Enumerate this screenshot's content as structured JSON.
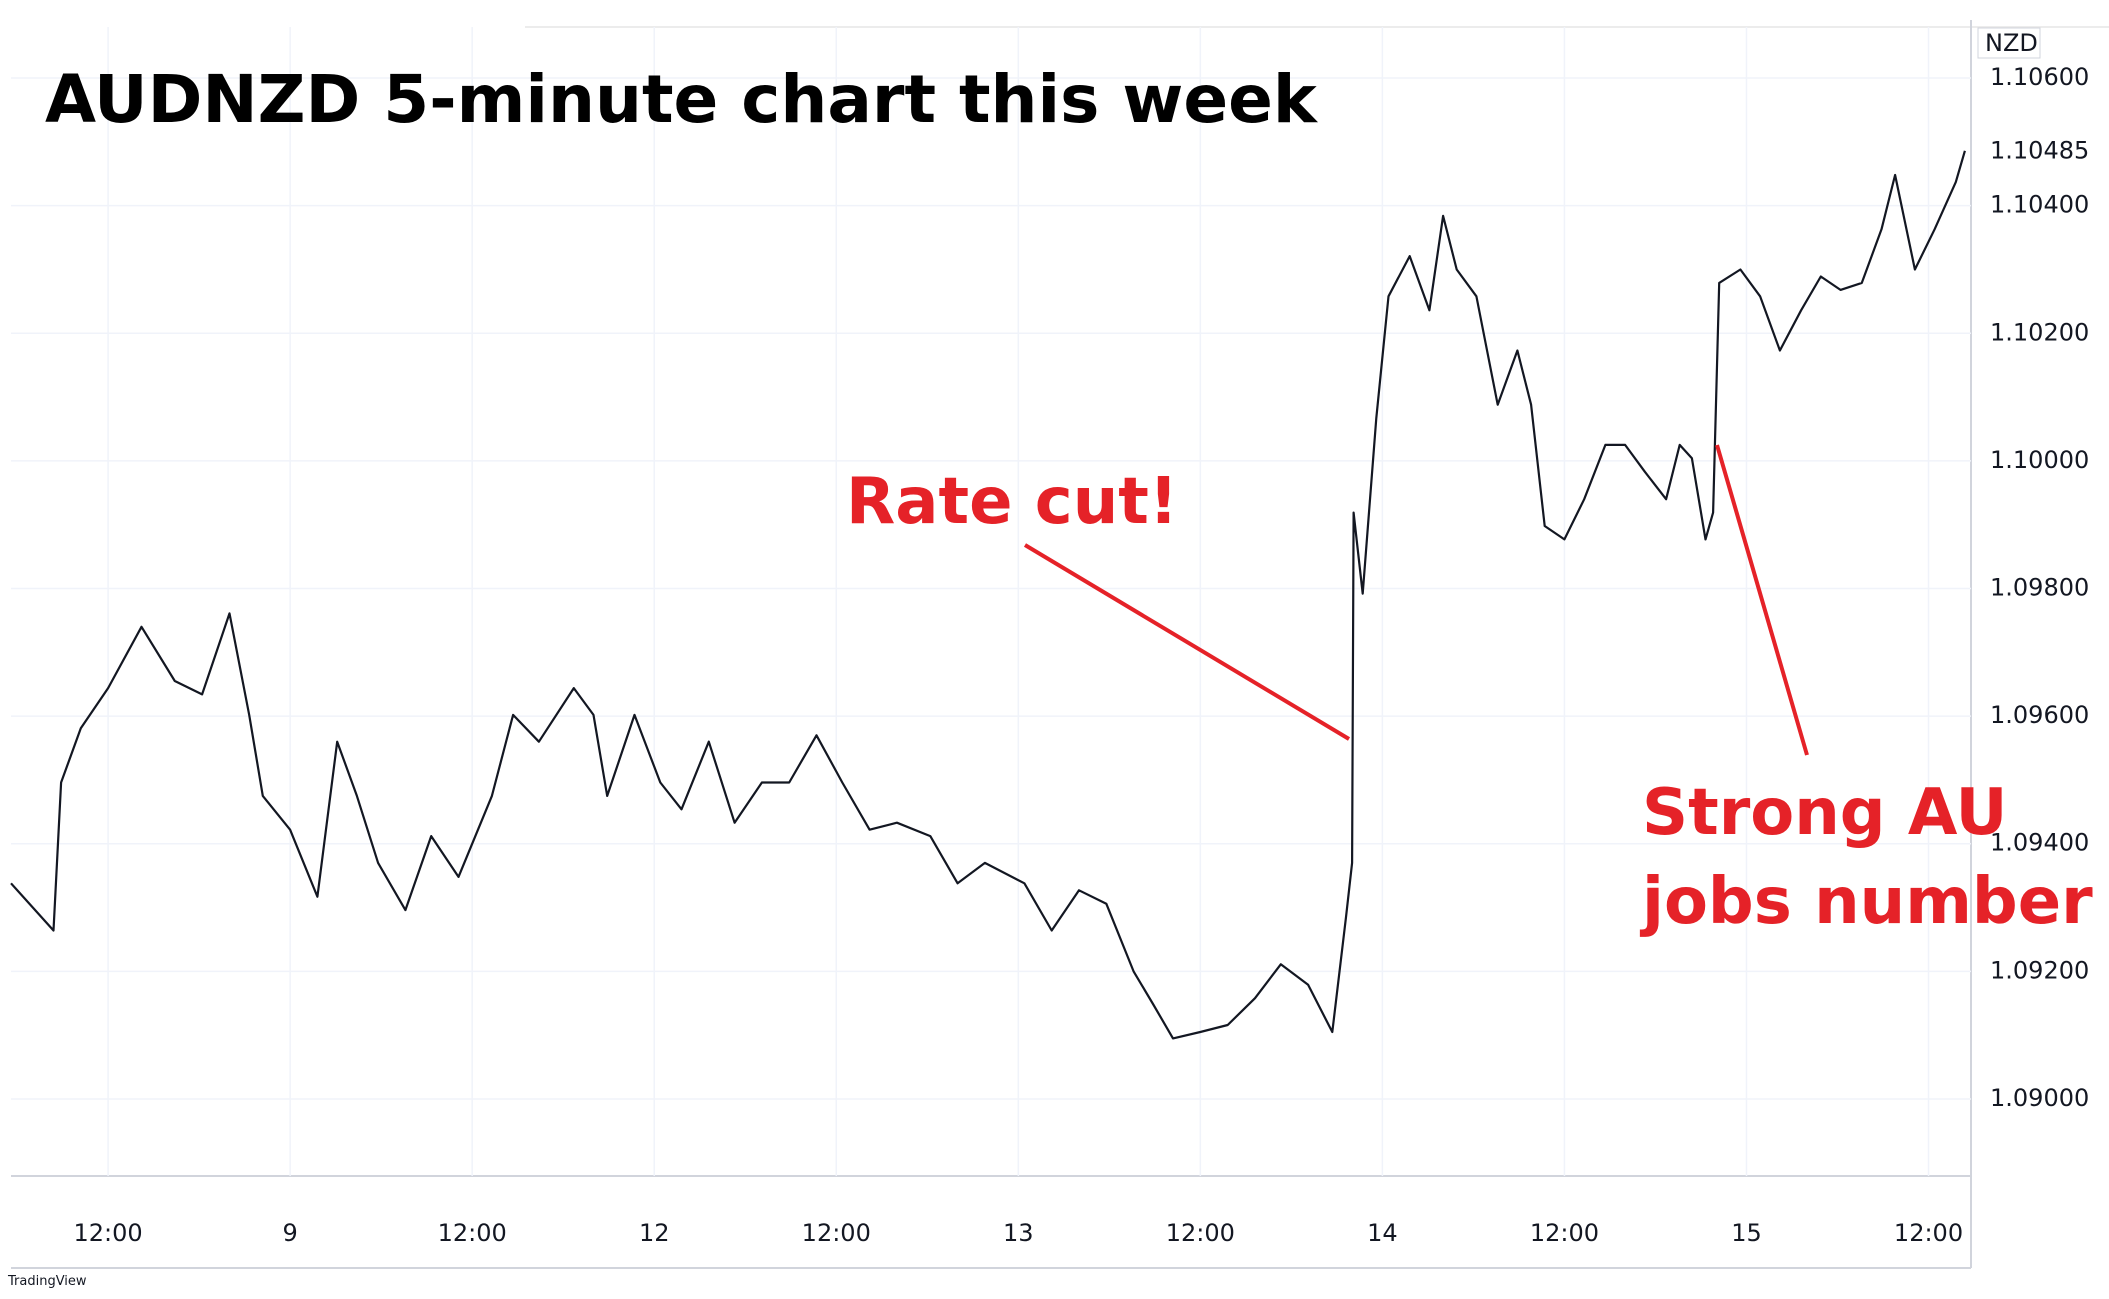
{
  "chart_data": {
    "type": "line",
    "title": "AUDNZD 5-minute chart this week",
    "currency": "NZD",
    "color": "#131722",
    "grid": true,
    "x": [
      -18.4,
      -15.6,
      -15.1,
      -13.8,
      -12,
      -9.8,
      -7.6,
      -5.8,
      -4,
      -2.7,
      -1.8,
      0,
      1.8,
      3.1,
      4.4,
      5.8,
      7.6,
      9.3,
      11.1,
      13.3,
      14.7,
      16.4,
      18.7,
      20,
      20.9,
      22.7,
      24.4,
      25.8,
      27.6,
      29.3,
      31.1,
      32.9,
      34.7,
      36.4,
      38.2,
      40,
      42.2,
      44,
      45.8,
      48.4,
      50.2,
      52,
      53.8,
      55.6,
      56.9,
      58.2,
      60,
      61.8,
      63.6,
      65.3,
      67.1,
      68.7,
      69.6,
      70,
      70.1,
      70.7,
      71.6,
      72.4,
      73.8,
      75.1,
      76,
      76.9,
      78.2,
      79.6,
      80.9,
      81.8,
      82.7,
      84,
      85.3,
      86.7,
      88,
      89.3,
      90.7,
      91.6,
      92.4,
      93.3,
      93.8,
      94.2,
      95.6,
      96.9,
      98.2,
      99.6,
      100.9,
      102.2,
      103.6,
      104.9,
      105.8,
      107.1,
      108.4,
      109.8,
      110.4
    ],
    "values": [
      1.09338,
      1.09264,
      1.09496,
      1.09581,
      1.09644,
      1.0974,
      1.09655,
      1.09634,
      1.09761,
      1.09602,
      1.09475,
      1.09422,
      1.09317,
      1.0956,
      1.09475,
      1.0937,
      1.09296,
      1.09412,
      1.09348,
      1.09475,
      1.09602,
      1.0956,
      1.09644,
      1.09602,
      1.09475,
      1.09602,
      1.09496,
      1.09454,
      1.0956,
      1.09433,
      1.09496,
      1.09496,
      1.0957,
      1.09496,
      1.09422,
      1.09433,
      1.09412,
      1.09338,
      1.0937,
      1.09338,
      1.09264,
      1.09327,
      1.09306,
      1.092,
      1.09148,
      1.09095,
      1.09105,
      1.09116,
      1.09158,
      1.09211,
      1.09179,
      1.09105,
      1.09285,
      1.0937,
      1.09919,
      1.09792,
      1.10067,
      1.10258,
      1.10321,
      1.10236,
      1.10384,
      1.103,
      1.10258,
      1.10088,
      1.10173,
      1.10088,
      1.09898,
      1.09877,
      1.0994,
      1.10025,
      1.10025,
      1.09983,
      1.0994,
      1.10025,
      1.10004,
      1.09877,
      1.09919,
      1.10279,
      1.103,
      1.10258,
      1.10173,
      1.10236,
      1.10289,
      1.10268,
      1.10279,
      1.10363,
      1.10448,
      1.103,
      1.10363,
      1.10437,
      1.10486
    ],
    "xlim": [
      -18.4,
      110.8
    ],
    "xticks": [
      {
        "value": -12,
        "label": "12:00"
      },
      {
        "value": 0,
        "label": "9"
      },
      {
        "value": 12,
        "label": "12:00"
      },
      {
        "value": 24,
        "label": "12"
      },
      {
        "value": 36,
        "label": "12:00"
      },
      {
        "value": 48,
        "label": "13"
      },
      {
        "value": 60,
        "label": "12:00"
      },
      {
        "value": 72,
        "label": "14"
      },
      {
        "value": 84,
        "label": "12:00"
      },
      {
        "value": 96,
        "label": "15"
      },
      {
        "value": 108,
        "label": "12:00"
      }
    ],
    "ylim": [
      1.08884,
      1.1068
    ],
    "yticks": [
      {
        "value": 1.09,
        "label": "1.09000"
      },
      {
        "value": 1.092,
        "label": "1.09200"
      },
      {
        "value": 1.094,
        "label": "1.09400"
      },
      {
        "value": 1.096,
        "label": "1.09600"
      },
      {
        "value": 1.098,
        "label": "1.09800"
      },
      {
        "value": 1.1,
        "label": "1.10000"
      },
      {
        "value": 1.102,
        "label": "1.10200"
      },
      {
        "value": 1.104,
        "label": "1.10400"
      },
      {
        "value": 1.106,
        "label": "1.10600"
      }
    ],
    "last_price": {
      "value": 1.10485,
      "label": "1.10485"
    },
    "annotations": [
      "Rate cut!",
      "Strong AU",
      "jobs number"
    ],
    "watermark": "TradingView"
  }
}
